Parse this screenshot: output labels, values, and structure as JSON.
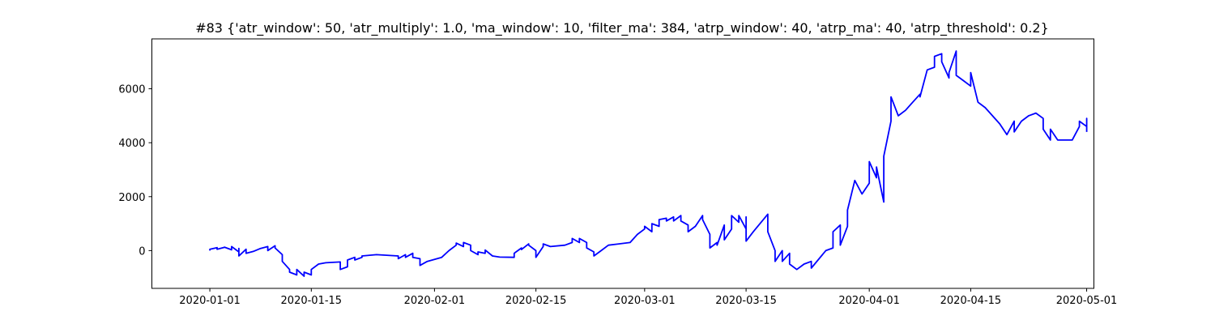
{
  "chart_data": {
    "type": "line",
    "title": "#83 {'atr_window': 50, 'atr_multiply': 1.0, 'ma_window': 10, 'filter_ma': 384, 'atrp_window': 40, 'atrp_ma': 40, 'atrp_threshold': 0.2}",
    "xlabel": "",
    "ylabel": "",
    "xlim": [
      "2019-12-24",
      "2020-05-02"
    ],
    "ylim": [
      -1400,
      7850
    ],
    "x_ticks": [
      "2020-01-01",
      "2020-01-15",
      "2020-02-01",
      "2020-02-15",
      "2020-03-01",
      "2020-03-15",
      "2020-04-01",
      "2020-04-15",
      "2020-05-01"
    ],
    "y_ticks": [
      0,
      2000,
      4000,
      6000
    ],
    "grid": false,
    "line_color": "#0000ff",
    "series": [
      {
        "points": [
          [
            "2020-01-01",
            0
          ],
          [
            "2020-01-01",
            50
          ],
          [
            "2020-01-02",
            110
          ],
          [
            "2020-01-02",
            50
          ],
          [
            "2020-01-03",
            120
          ],
          [
            "2020-01-03",
            130
          ],
          [
            "2020-01-04",
            30
          ],
          [
            "2020-01-04",
            150
          ],
          [
            "2020-01-05",
            -50
          ],
          [
            "2020-01-05",
            80
          ],
          [
            "2020-01-05",
            -200
          ],
          [
            "2020-01-06",
            50
          ],
          [
            "2020-01-06",
            -100
          ],
          [
            "2020-01-07",
            -30
          ],
          [
            "2020-01-08",
            80
          ],
          [
            "2020-01-09",
            150
          ],
          [
            "2020-01-09",
            0
          ],
          [
            "2020-01-10",
            180
          ],
          [
            "2020-01-10",
            100
          ],
          [
            "2020-01-11",
            -150
          ],
          [
            "2020-01-11",
            -400
          ],
          [
            "2020-01-12",
            -700
          ],
          [
            "2020-01-12",
            -800
          ],
          [
            "2020-01-13",
            -900
          ],
          [
            "2020-01-13",
            -700
          ],
          [
            "2020-01-14",
            -950
          ],
          [
            "2020-01-14",
            -800
          ],
          [
            "2020-01-15",
            -900
          ],
          [
            "2020-01-15",
            -700
          ],
          [
            "2020-01-16",
            -500
          ],
          [
            "2020-01-17",
            -450
          ],
          [
            "2020-01-19",
            -420
          ],
          [
            "2020-01-19",
            -700
          ],
          [
            "2020-01-20",
            -600
          ],
          [
            "2020-01-20",
            -350
          ],
          [
            "2020-01-21",
            -250
          ],
          [
            "2020-01-21",
            -350
          ],
          [
            "2020-01-22",
            -250
          ],
          [
            "2020-01-22",
            -200
          ],
          [
            "2020-01-24",
            -150
          ],
          [
            "2020-01-27",
            -200
          ],
          [
            "2020-01-27",
            -300
          ],
          [
            "2020-01-28",
            -150
          ],
          [
            "2020-01-28",
            -250
          ],
          [
            "2020-01-29",
            -100
          ],
          [
            "2020-01-29",
            -250
          ],
          [
            "2020-01-30",
            -300
          ],
          [
            "2020-01-30",
            -550
          ],
          [
            "2020-01-31",
            -400
          ],
          [
            "2020-02-02",
            -250
          ],
          [
            "2020-02-03",
            0
          ],
          [
            "2020-02-04",
            200
          ],
          [
            "2020-02-04",
            280
          ],
          [
            "2020-02-05",
            150
          ],
          [
            "2020-02-05",
            300
          ],
          [
            "2020-02-06",
            200
          ],
          [
            "2020-02-06",
            0
          ],
          [
            "2020-02-07",
            -150
          ],
          [
            "2020-02-07",
            -50
          ],
          [
            "2020-02-08",
            -100
          ],
          [
            "2020-02-08",
            20
          ],
          [
            "2020-02-09",
            -200
          ],
          [
            "2020-02-10",
            -240
          ],
          [
            "2020-02-12",
            -250
          ],
          [
            "2020-02-12",
            -100
          ],
          [
            "2020-02-13",
            100
          ],
          [
            "2020-02-13",
            40
          ],
          [
            "2020-02-14",
            250
          ],
          [
            "2020-02-14",
            200
          ],
          [
            "2020-02-15",
            0
          ],
          [
            "2020-02-15",
            -250
          ],
          [
            "2020-02-16",
            150
          ],
          [
            "2020-02-16",
            250
          ],
          [
            "2020-02-17",
            150
          ],
          [
            "2020-02-19",
            200
          ],
          [
            "2020-02-20",
            300
          ],
          [
            "2020-02-20",
            450
          ],
          [
            "2020-02-21",
            300
          ],
          [
            "2020-02-21",
            450
          ],
          [
            "2020-02-22",
            300
          ],
          [
            "2020-02-22",
            100
          ],
          [
            "2020-02-23",
            -50
          ],
          [
            "2020-02-23",
            -200
          ],
          [
            "2020-02-24",
            0
          ],
          [
            "2020-02-25",
            200
          ],
          [
            "2020-02-28",
            300
          ],
          [
            "2020-02-29",
            600
          ],
          [
            "2020-03-01",
            800
          ],
          [
            "2020-03-01",
            900
          ],
          [
            "2020-03-02",
            700
          ],
          [
            "2020-03-02",
            1000
          ],
          [
            "2020-03-03",
            900
          ],
          [
            "2020-03-03",
            1150
          ],
          [
            "2020-03-04",
            1200
          ],
          [
            "2020-03-04",
            1100
          ],
          [
            "2020-03-05",
            1250
          ],
          [
            "2020-03-05",
            1100
          ],
          [
            "2020-03-06",
            1300
          ],
          [
            "2020-03-06",
            1100
          ],
          [
            "2020-03-07",
            950
          ],
          [
            "2020-03-07",
            700
          ],
          [
            "2020-03-08",
            900
          ],
          [
            "2020-03-09",
            1300
          ],
          [
            "2020-03-09",
            1150
          ],
          [
            "2020-03-10",
            600
          ],
          [
            "2020-03-10",
            100
          ],
          [
            "2020-03-11",
            300
          ],
          [
            "2020-03-11",
            200
          ],
          [
            "2020-03-12",
            950
          ],
          [
            "2020-03-12",
            400
          ],
          [
            "2020-03-13",
            800
          ],
          [
            "2020-03-13",
            1300
          ],
          [
            "2020-03-14",
            1050
          ],
          [
            "2020-03-14",
            1300
          ],
          [
            "2020-03-15",
            800
          ],
          [
            "2020-03-15",
            1250
          ],
          [
            "2020-03-15",
            350
          ],
          [
            "2020-03-16",
            700
          ],
          [
            "2020-03-18",
            1350
          ],
          [
            "2020-03-18",
            700
          ],
          [
            "2020-03-19",
            0
          ],
          [
            "2020-03-19",
            -400
          ],
          [
            "2020-03-20",
            0
          ],
          [
            "2020-03-20",
            -400
          ],
          [
            "2020-03-21",
            -100
          ],
          [
            "2020-03-21",
            -500
          ],
          [
            "2020-03-22",
            -700
          ],
          [
            "2020-03-23",
            -500
          ],
          [
            "2020-03-24",
            -400
          ],
          [
            "2020-03-24",
            -650
          ],
          [
            "2020-03-26",
            0
          ],
          [
            "2020-03-27",
            100
          ],
          [
            "2020-03-27",
            700
          ],
          [
            "2020-03-28",
            950
          ],
          [
            "2020-03-28",
            200
          ],
          [
            "2020-03-29",
            900
          ],
          [
            "2020-03-29",
            1500
          ],
          [
            "2020-03-30",
            2600
          ],
          [
            "2020-03-31",
            2100
          ],
          [
            "2020-04-01",
            2500
          ],
          [
            "2020-04-01",
            3300
          ],
          [
            "2020-04-02",
            2700
          ],
          [
            "2020-04-02",
            3100
          ],
          [
            "2020-04-03",
            1800
          ],
          [
            "2020-04-03",
            3500
          ],
          [
            "2020-04-04",
            4800
          ],
          [
            "2020-04-04",
            5700
          ],
          [
            "2020-04-05",
            5000
          ],
          [
            "2020-04-06",
            5200
          ],
          [
            "2020-04-07",
            5500
          ],
          [
            "2020-04-08",
            5800
          ],
          [
            "2020-04-08",
            5700
          ],
          [
            "2020-04-09",
            6700
          ],
          [
            "2020-04-10",
            6800
          ],
          [
            "2020-04-10",
            7200
          ],
          [
            "2020-04-11",
            7300
          ],
          [
            "2020-04-11",
            7000
          ],
          [
            "2020-04-12",
            6400
          ],
          [
            "2020-04-12",
            6600
          ],
          [
            "2020-04-13",
            7400
          ],
          [
            "2020-04-13",
            6500
          ],
          [
            "2020-04-14",
            6300
          ],
          [
            "2020-04-15",
            6100
          ],
          [
            "2020-04-15",
            6600
          ],
          [
            "2020-04-16",
            5500
          ],
          [
            "2020-04-17",
            5300
          ],
          [
            "2020-04-19",
            4700
          ],
          [
            "2020-04-20",
            4300
          ],
          [
            "2020-04-21",
            4800
          ],
          [
            "2020-04-21",
            4400
          ],
          [
            "2020-04-22",
            4800
          ],
          [
            "2020-04-23",
            5000
          ],
          [
            "2020-04-24",
            5100
          ],
          [
            "2020-04-25",
            4900
          ],
          [
            "2020-04-25",
            4500
          ],
          [
            "2020-04-26",
            4100
          ],
          [
            "2020-04-26",
            4500
          ],
          [
            "2020-04-27",
            4100
          ],
          [
            "2020-04-29",
            4100
          ],
          [
            "2020-04-30",
            4600
          ],
          [
            "2020-04-30",
            4800
          ],
          [
            "2020-05-01",
            4600
          ],
          [
            "2020-05-01",
            4900
          ],
          [
            "2020-05-01",
            4400
          ]
        ]
      }
    ]
  }
}
